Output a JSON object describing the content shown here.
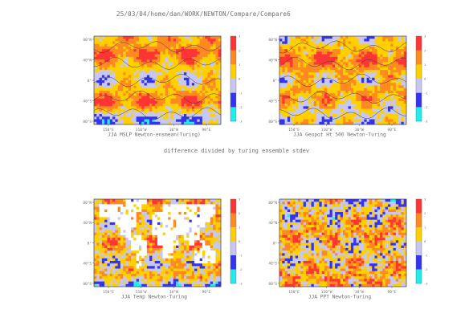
{
  "header": {
    "path": "25/03/04/home/dan/WORK/NEWTON/Compare/Compare6"
  },
  "note": "difference divided by turing ensemble stdev",
  "legend": {
    "labels": [
      "3",
      "2",
      "1",
      "0",
      "-1",
      "-2",
      "-3"
    ],
    "colors": [
      "#ff3434",
      "#ff8a22",
      "#ffd000",
      "#c7c7f3",
      "#3434f0",
      "#22ecec"
    ]
  },
  "chart_data": [
    {
      "type": "heatmap",
      "title": "JJA MSLP Newton-ensmean(Turing)",
      "xticks": [
        "150°E",
        "110°W",
        "10°W",
        "90°E"
      ],
      "yticks": [
        "80°N",
        "40°N",
        "0°",
        "40°S",
        "80°S"
      ],
      "colorbar": [
        3,
        2,
        1,
        0,
        -1,
        -2,
        -3
      ],
      "zones": [
        {
          "lat": 75,
          "level": 1
        },
        {
          "lat": 55,
          "level": 2
        },
        {
          "lat": 35,
          "level": 1
        },
        {
          "lat": 15,
          "level": 0
        },
        {
          "lat": -5,
          "level": 0
        },
        {
          "lat": -25,
          "level": 1
        },
        {
          "lat": -45,
          "level": 2
        },
        {
          "lat": -65,
          "level": 0
        },
        {
          "lat": -80,
          "level": -1
        }
      ],
      "patchiness": 0.25,
      "land_mask": false
    },
    {
      "type": "heatmap",
      "title": "JJA Geopot Ht 500 Newton-Turing",
      "xticks": [
        "150°E",
        "110°W",
        "10°W",
        "90°E"
      ],
      "yticks": [
        "80°N",
        "40°N",
        "0°",
        "40°S",
        "80°S"
      ],
      "colorbar": [
        3,
        2,
        1,
        0,
        -1,
        -2,
        -3
      ],
      "zones": [
        {
          "lat": 80,
          "level": 0
        },
        {
          "lat": 60,
          "level": 1
        },
        {
          "lat": 40,
          "level": 2
        },
        {
          "lat": 20,
          "level": 1
        },
        {
          "lat": 0,
          "level": 0
        },
        {
          "lat": -20,
          "level": 1
        },
        {
          "lat": -40,
          "level": 1
        },
        {
          "lat": -60,
          "level": 0
        },
        {
          "lat": -80,
          "level": 0
        }
      ],
      "patchiness": 0.3,
      "land_mask": false
    },
    {
      "type": "heatmap",
      "title": "JJA Temp Newton-Turing",
      "xticks": [
        "150°E",
        "110°W",
        "10°W",
        "90°E"
      ],
      "yticks": [
        "80°N",
        "40°N",
        "0°",
        "40°S",
        "80°S"
      ],
      "colorbar": [
        3,
        2,
        1,
        0,
        -1,
        -2,
        -3
      ],
      "zones": [
        {
          "lat": 70,
          "level": 1
        },
        {
          "lat": 40,
          "level": 0
        },
        {
          "lat": 0,
          "level": 1
        },
        {
          "lat": -40,
          "level": 0
        },
        {
          "lat": -70,
          "level": 1
        },
        {
          "lat": -85,
          "level": -1
        }
      ],
      "patchiness": 0.45,
      "land_mask": true
    },
    {
      "type": "heatmap",
      "title": "JJA PPT Newton-Turing",
      "xticks": [
        "150°E",
        "110°W",
        "10°W",
        "90°E"
      ],
      "yticks": [
        "80°N",
        "40°N",
        "0°",
        "40°S",
        "80°S"
      ],
      "colorbar": [
        3,
        2,
        1,
        0,
        -1,
        -2,
        -3
      ],
      "zones": [
        {
          "lat": 60,
          "level": 0
        },
        {
          "lat": 20,
          "level": 1
        },
        {
          "lat": -20,
          "level": 0
        },
        {
          "lat": -60,
          "level": 1
        }
      ],
      "patchiness": 0.6,
      "land_mask": false
    }
  ]
}
